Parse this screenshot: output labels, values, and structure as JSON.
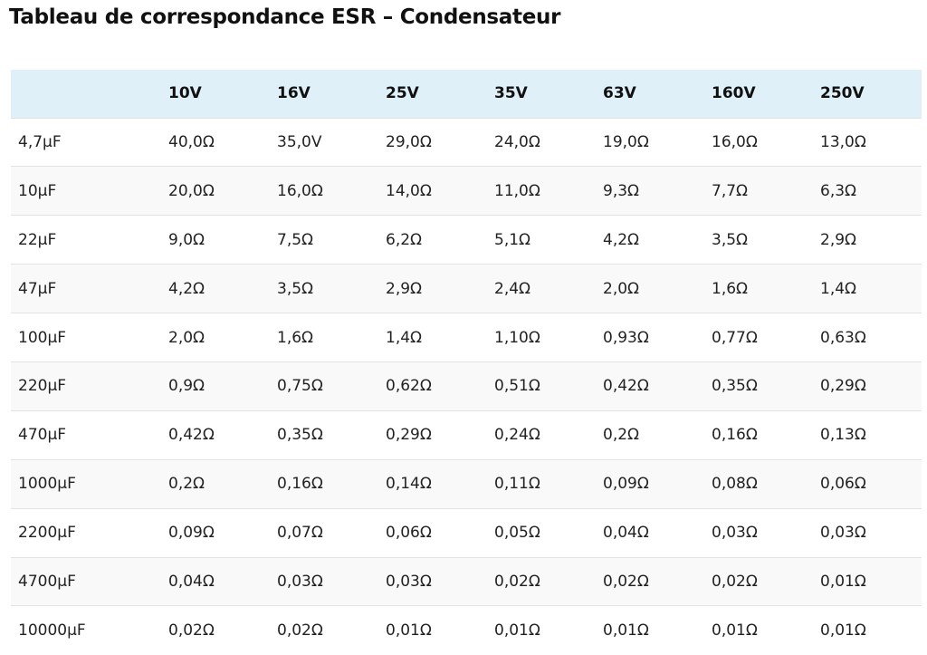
{
  "title": "Tableau de correspondance ESR – Condensateur",
  "table": {
    "header": [
      "10V",
      "16V",
      "25V",
      "35V",
      "63V",
      "160V",
      "250V"
    ],
    "rows": [
      [
        "4,7µF",
        "40,0Ω",
        "35,0V",
        "29,0Ω",
        "24,0Ω",
        "19,0Ω",
        "16,0Ω",
        "13,0Ω"
      ],
      [
        "10µF",
        "20,0Ω",
        "16,0Ω",
        "14,0Ω",
        "11,0Ω",
        "9,3Ω",
        "7,7Ω",
        "6,3Ω"
      ],
      [
        "22µF",
        "9,0Ω",
        "7,5Ω",
        "6,2Ω",
        "5,1Ω",
        "4,2Ω",
        "3,5Ω",
        "2,9Ω"
      ],
      [
        "47µF",
        "4,2Ω",
        "3,5Ω",
        "2,9Ω",
        "2,4Ω",
        "2,0Ω",
        "1,6Ω",
        "1,4Ω"
      ],
      [
        "100µF",
        "2,0Ω",
        "1,6Ω",
        "1,4Ω",
        "1,10Ω",
        "0,93Ω",
        "0,77Ω",
        "0,63Ω"
      ],
      [
        "220µF",
        "0,9Ω",
        "0,75Ω",
        "0,62Ω",
        "0,51Ω",
        "0,42Ω",
        "0,35Ω",
        "0,29Ω"
      ],
      [
        "470µF",
        "0,42Ω",
        "0,35Ω",
        "0,29Ω",
        "0,24Ω",
        "0,2Ω",
        "0,16Ω",
        "0,13Ω"
      ],
      [
        "1000µF",
        "0,2Ω",
        "0,16Ω",
        "0,14Ω",
        "0,11Ω",
        "0,09Ω",
        "0,08Ω",
        "0,06Ω"
      ],
      [
        "2200µF",
        "0,09Ω",
        "0,07Ω",
        "0,06Ω",
        "0,05Ω",
        "0,04Ω",
        "0,03Ω",
        "0,03Ω"
      ],
      [
        "4700µF",
        "0,04Ω",
        "0,03Ω",
        "0,03Ω",
        "0,02Ω",
        "0,02Ω",
        "0,02Ω",
        "0,01Ω"
      ],
      [
        "10000µF",
        "0,02Ω",
        "0,02Ω",
        "0,01Ω",
        "0,01Ω",
        "0,01Ω",
        "0,01Ω",
        "0,01Ω"
      ]
    ]
  }
}
